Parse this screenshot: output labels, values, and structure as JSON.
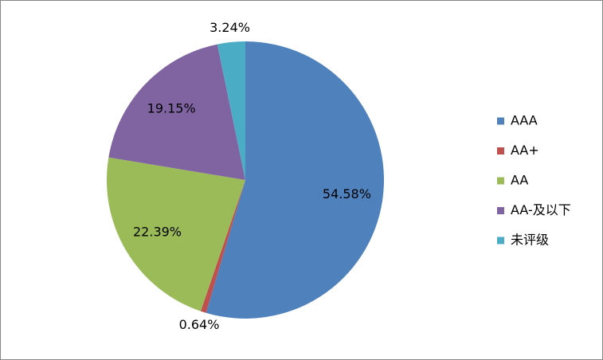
{
  "chart_data": {
    "type": "pie",
    "categories": [
      "AAA",
      "AA+",
      "AA",
      "AA-及以下",
      "未评级"
    ],
    "values": [
      54.58,
      0.64,
      22.39,
      19.15,
      3.24
    ],
    "value_labels": [
      "54.58%",
      "0.64%",
      "22.39%",
      "19.15%",
      "3.24%"
    ],
    "colors": [
      "#4f81bd",
      "#c0504d",
      "#9bbb59",
      "#8064a2",
      "#4bacc6"
    ],
    "legend": "right"
  }
}
